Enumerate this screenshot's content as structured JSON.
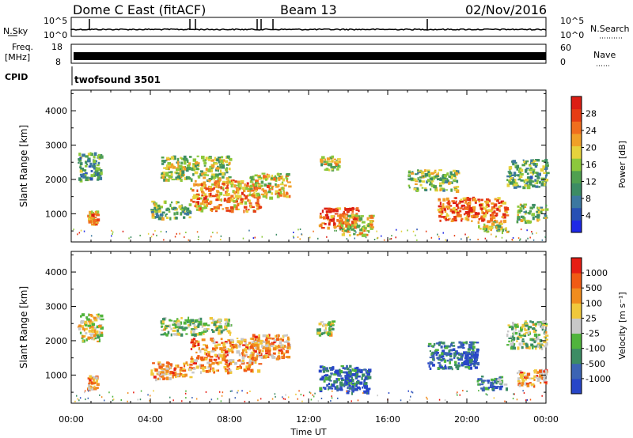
{
  "header": {
    "radar": "Dome C East (fitACF)",
    "beam": "Beam 13",
    "date": "02/Nov/2016"
  },
  "strips": {
    "nsky": {
      "label": "N.Sky",
      "ticks": [
        "10^5",
        "10^0"
      ]
    },
    "nsearch": {
      "label": "N.Search",
      "ticks": [
        "10^5",
        "10^0"
      ]
    },
    "freq": {
      "label_line1": "Freq.",
      "label_line2": "[MHz]",
      "ticks": [
        "18",
        "8"
      ]
    },
    "nave": {
      "label": "Nave",
      "ticks": [
        "60",
        "0"
      ]
    },
    "cpid": {
      "label": "CPID",
      "value": "twofsound 3501"
    }
  },
  "chart_data": [
    {
      "type": "heatmap",
      "panel": "power",
      "ylabel": "Slant Range [km]",
      "xlabel": "Time UT",
      "x_ticks": [
        "00:00",
        "04:00",
        "08:00",
        "12:00",
        "16:00",
        "20:00",
        "00:00"
      ],
      "y_ticks": [
        "1000",
        "2000",
        "3000",
        "4000"
      ],
      "ylim": [
        180,
        4600
      ],
      "xlim_hours": [
        0,
        24
      ],
      "colorbar": {
        "label": "Power [dB]",
        "ticks": [
          "4",
          "8",
          "12",
          "16",
          "20",
          "24",
          "28"
        ],
        "colors": [
          "#1e28e6",
          "#2850b4",
          "#3c78a0",
          "#3c8c64",
          "#50a050",
          "#8cc83c",
          "#e6d23c",
          "#f0a028",
          "#f06e1e",
          "#e63c14",
          "#dc1e14"
        ]
      },
      "blobs": [
        {
          "t0": 0.3,
          "t1": 1.5,
          "r0": 2000,
          "r1": 2800,
          "level": 0.35
        },
        {
          "t0": 0.8,
          "t1": 1.3,
          "r0": 700,
          "r1": 1100,
          "level": 0.7
        },
        {
          "t0": 4.0,
          "t1": 6.0,
          "r0": 900,
          "r1": 1400,
          "level": 0.45
        },
        {
          "t0": 4.5,
          "t1": 8.0,
          "r0": 2000,
          "r1": 2700,
          "level": 0.5
        },
        {
          "t0": 6.0,
          "t1": 9.5,
          "r0": 1100,
          "r1": 2000,
          "level": 0.7
        },
        {
          "t0": 9.0,
          "t1": 11.0,
          "r0": 1500,
          "r1": 2200,
          "level": 0.6
        },
        {
          "t0": 12.5,
          "t1": 13.5,
          "r0": 2300,
          "r1": 2700,
          "level": 0.55
        },
        {
          "t0": 12.5,
          "t1": 14.5,
          "r0": 600,
          "r1": 1200,
          "level": 0.85
        },
        {
          "t0": 13.5,
          "t1": 15.2,
          "r0": 400,
          "r1": 1000,
          "level": 0.6
        },
        {
          "t0": 17.0,
          "t1": 19.5,
          "r0": 1700,
          "r1": 2300,
          "level": 0.45
        },
        {
          "t0": 18.5,
          "t1": 22.0,
          "r0": 800,
          "r1": 1500,
          "level": 0.8
        },
        {
          "t0": 20.5,
          "t1": 22.0,
          "r0": 500,
          "r1": 800,
          "level": 0.5
        },
        {
          "t0": 22.0,
          "t1": 24.0,
          "r0": 1800,
          "r1": 2600,
          "level": 0.4
        },
        {
          "t0": 22.5,
          "t1": 24.0,
          "r0": 800,
          "r1": 1300,
          "level": 0.45
        }
      ]
    },
    {
      "type": "heatmap",
      "panel": "velocity",
      "ylabel": "Slant Range [km]",
      "xlabel": "Time UT",
      "x_ticks": [
        "00:00",
        "04:00",
        "08:00",
        "12:00",
        "16:00",
        "20:00",
        "00:00"
      ],
      "y_ticks": [
        "1000",
        "2000",
        "3000",
        "4000"
      ],
      "ylim": [
        180,
        4600
      ],
      "xlim_hours": [
        0,
        24
      ],
      "colorbar": {
        "label": "Velocity [m s⁻¹]",
        "ticks": [
          "1000",
          "500",
          "100",
          "25",
          "-25",
          "-100",
          "-500",
          "-1000"
        ],
        "colors": [
          "#2846c8",
          "#3c64b4",
          "#3c8c64",
          "#50b43c",
          "#c8c8c8",
          "#f0c83c",
          "#f08c1e",
          "#f05a14",
          "#e61e14"
        ]
      },
      "blobs": [
        {
          "t0": 0.3,
          "t1": 1.5,
          "r0": 2000,
          "r1": 2800,
          "level": 0.55
        },
        {
          "t0": 0.8,
          "t1": 1.3,
          "r0": 600,
          "r1": 1000,
          "level": 0.7
        },
        {
          "t0": 4.0,
          "t1": 6.0,
          "r0": 900,
          "r1": 1400,
          "level": 0.7
        },
        {
          "t0": 4.5,
          "t1": 8.0,
          "r0": 2200,
          "r1": 2700,
          "level": 0.45
        },
        {
          "t0": 6.0,
          "t1": 9.5,
          "r0": 1100,
          "r1": 2100,
          "level": 0.72
        },
        {
          "t0": 9.0,
          "t1": 11.0,
          "r0": 1500,
          "r1": 2200,
          "level": 0.68
        },
        {
          "t0": 12.4,
          "t1": 13.2,
          "r0": 2200,
          "r1": 2600,
          "level": 0.45
        },
        {
          "t0": 12.5,
          "t1": 14.5,
          "r0": 600,
          "r1": 1300,
          "level": 0.2
        },
        {
          "t0": 13.8,
          "t1": 15.0,
          "r0": 500,
          "r1": 1200,
          "level": 0.1
        },
        {
          "t0": 18.0,
          "t1": 20.5,
          "r0": 1200,
          "r1": 2000,
          "level": 0.2
        },
        {
          "t0": 19.5,
          "t1": 20.5,
          "r0": 1300,
          "r1": 1700,
          "level": 0.05
        },
        {
          "t0": 20.5,
          "t1": 22.0,
          "r0": 600,
          "r1": 1000,
          "level": 0.25
        },
        {
          "t0": 22.0,
          "t1": 24.0,
          "r0": 1800,
          "r1": 2600,
          "level": 0.45
        },
        {
          "t0": 22.5,
          "t1": 24.0,
          "r0": 700,
          "r1": 1200,
          "level": 0.7
        }
      ]
    }
  ]
}
